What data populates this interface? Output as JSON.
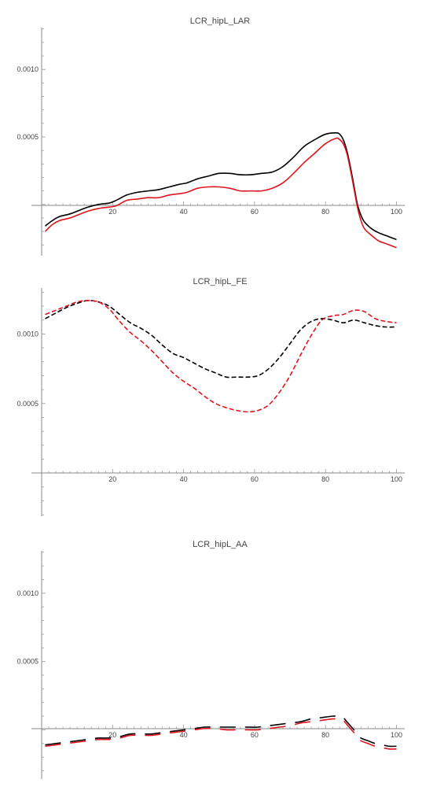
{
  "chart_data": [
    {
      "type": "line",
      "title": "LCR_hipL_LAR",
      "xlabel": "",
      "ylabel": "",
      "xlim": [
        0,
        101
      ],
      "ylim": [
        -0.00038,
        0.00131
      ],
      "x_ticks": [
        20,
        40,
        60,
        80,
        100
      ],
      "y_ticks": [
        0.0005,
        0.001
      ],
      "y_tick_labels": [
        "0.0005",
        "0.0010"
      ],
      "grid": false,
      "line_style": "solid",
      "series": [
        {
          "color": "#000000",
          "x": [
            1,
            3,
            5,
            8,
            10,
            13,
            16,
            19,
            21,
            24,
            27,
            30,
            33,
            36,
            39,
            41,
            44,
            47,
            50,
            53,
            56,
            59,
            62,
            65,
            68,
            71,
            74,
            77,
            80,
            83,
            84,
            85,
            86,
            87,
            88,
            89,
            90,
            91,
            93,
            95,
            97,
            99,
            100
          ],
          "y": [
            -0.00016,
            -0.00012,
            -9e-05,
            -7e-05,
            -5e-05,
            -2e-05,
            0.0,
            1e-05,
            3e-05,
            7e-05,
            9e-05,
            0.0001,
            0.00011,
            0.00013,
            0.00015,
            0.00016,
            0.00019,
            0.00021,
            0.00023,
            0.00023,
            0.00022,
            0.00022,
            0.00023,
            0.00024,
            0.00028,
            0.00035,
            0.00043,
            0.00048,
            0.00052,
            0.00053,
            0.00052,
            0.00048,
            0.0004,
            0.00028,
            0.00014,
            0.0,
            -8e-05,
            -0.00013,
            -0.00018,
            -0.00021,
            -0.00023,
            -0.00025,
            -0.00026
          ]
        },
        {
          "color": "#e0141e",
          "x": [
            1,
            3,
            5,
            8,
            10,
            13,
            16,
            19,
            21,
            24,
            27,
            30,
            33,
            36,
            39,
            41,
            44,
            47,
            50,
            53,
            56,
            59,
            62,
            65,
            68,
            71,
            74,
            77,
            80,
            83,
            84,
            85,
            86,
            87,
            88,
            89,
            90,
            91,
            93,
            95,
            97,
            99,
            100
          ],
          "y": [
            -0.0002,
            -0.00015,
            -0.00012,
            -0.0001,
            -8e-05,
            -5e-05,
            -3e-05,
            -2e-05,
            -1e-05,
            3e-05,
            4e-05,
            5e-05,
            5e-05,
            7e-05,
            8e-05,
            9e-05,
            0.00012,
            0.00013,
            0.00013,
            0.00012,
            0.0001,
            0.0001,
            0.0001,
            0.00012,
            0.00016,
            0.00023,
            0.00031,
            0.00038,
            0.00045,
            0.00049,
            0.00048,
            0.00045,
            0.00038,
            0.00026,
            0.00012,
            -2e-05,
            -0.00012,
            -0.00018,
            -0.00023,
            -0.00027,
            -0.00029,
            -0.00031,
            -0.00032
          ]
        }
      ]
    },
    {
      "type": "line",
      "title": "LCR_hipL_FE",
      "xlabel": "",
      "ylabel": "",
      "xlim": [
        0,
        101
      ],
      "ylim": [
        -0.00031,
        0.00133
      ],
      "x_ticks": [
        20,
        40,
        60,
        80,
        100
      ],
      "y_ticks": [
        0.0005,
        0.001
      ],
      "y_tick_labels": [
        "0.0005",
        "0.0010"
      ],
      "grid": false,
      "line_style": "dashed",
      "series": [
        {
          "color": "#000000",
          "x": [
            1,
            4,
            7,
            10,
            13,
            16,
            19,
            22,
            25,
            28,
            31,
            34,
            37,
            40,
            43,
            46,
            49,
            52,
            55,
            58,
            61,
            64,
            67,
            70,
            73,
            76,
            79,
            82,
            85,
            88,
            91,
            94,
            97,
            100
          ],
          "y": [
            0.00111,
            0.00115,
            0.00119,
            0.00122,
            0.00124,
            0.00123,
            0.0012,
            0.00114,
            0.00108,
            0.00104,
            0.00099,
            0.00092,
            0.00086,
            0.00083,
            0.00079,
            0.00075,
            0.00072,
            0.00069,
            0.00069,
            0.00069,
            0.0007,
            0.00075,
            0.00083,
            0.00093,
            0.00103,
            0.00109,
            0.00111,
            0.0011,
            0.00108,
            0.0011,
            0.00108,
            0.00106,
            0.00105,
            0.00105
          ]
        },
        {
          "color": "#e0141e",
          "x": [
            1,
            4,
            7,
            10,
            13,
            16,
            19,
            22,
            25,
            28,
            31,
            34,
            37,
            40,
            43,
            46,
            49,
            52,
            55,
            58,
            61,
            64,
            67,
            70,
            73,
            76,
            79,
            82,
            85,
            88,
            91,
            94,
            97,
            100
          ],
          "y": [
            0.00114,
            0.00117,
            0.0012,
            0.00123,
            0.00124,
            0.00123,
            0.00118,
            0.00109,
            0.00101,
            0.00095,
            0.00088,
            0.0008,
            0.00072,
            0.00066,
            0.00061,
            0.00055,
            0.0005,
            0.00047,
            0.00045,
            0.00044,
            0.00045,
            0.00049,
            0.00058,
            0.0007,
            0.00085,
            0.00099,
            0.0011,
            0.00113,
            0.00114,
            0.00117,
            0.00116,
            0.00111,
            0.00109,
            0.00108
          ]
        }
      ]
    },
    {
      "type": "line",
      "title": "LCR_hipL_AA",
      "xlabel": "",
      "ylabel": "",
      "xlim": [
        0,
        101
      ],
      "ylim": [
        -0.00036,
        0.00131
      ],
      "x_ticks": [
        20,
        40,
        60,
        80,
        100
      ],
      "y_ticks": [
        0.0005,
        0.001
      ],
      "y_tick_labels": [
        "0.0005",
        "0.0010"
      ],
      "grid": false,
      "line_style": "long-dash",
      "series": [
        {
          "color": "#000000",
          "x": [
            1,
            4,
            7,
            10,
            13,
            16,
            19,
            22,
            25,
            28,
            31,
            34,
            37,
            40,
            43,
            46,
            49,
            52,
            55,
            58,
            61,
            64,
            67,
            70,
            73,
            76,
            79,
            82,
            84,
            85,
            86,
            87,
            88,
            89,
            90,
            92,
            94,
            96,
            98,
            100
          ],
          "y": [
            -0.00011,
            -0.0001,
            -9e-05,
            -8e-05,
            -7e-05,
            -6e-05,
            -6e-05,
            -5e-05,
            -3e-05,
            -3e-05,
            -3e-05,
            -2e-05,
            -1e-05,
            0.0,
            1e-05,
            2e-05,
            2e-05,
            2e-05,
            2e-05,
            2e-05,
            2e-05,
            3e-05,
            4e-05,
            5e-05,
            6e-05,
            8e-05,
            9e-05,
            0.0001,
            0.0001,
            9e-05,
            6e-05,
            3e-05,
            0.0,
            -3e-05,
            -6e-05,
            -8e-05,
            -0.0001,
            -0.00011,
            -0.00012,
            -0.00012
          ]
        },
        {
          "color": "#e0141e",
          "x": [
            1,
            4,
            7,
            10,
            13,
            16,
            19,
            22,
            25,
            28,
            31,
            34,
            37,
            40,
            43,
            46,
            49,
            52,
            55,
            58,
            61,
            64,
            67,
            70,
            73,
            76,
            79,
            82,
            84,
            85,
            86,
            87,
            88,
            89,
            90,
            92,
            94,
            96,
            98,
            100
          ],
          "y": [
            -0.00012,
            -0.00011,
            -0.0001,
            -9e-05,
            -8e-05,
            -7e-05,
            -7e-05,
            -6e-05,
            -4e-05,
            -4e-05,
            -4e-05,
            -3e-05,
            -2e-05,
            -1e-05,
            0.0,
            1e-05,
            1e-05,
            0.0,
            0.0,
            0.0,
            0.0,
            1e-05,
            2e-05,
            3e-05,
            5e-05,
            6e-05,
            7e-05,
            8e-05,
            8e-05,
            7e-05,
            4e-05,
            1e-05,
            -2e-05,
            -5e-05,
            -8e-05,
            -0.0001,
            -0.00012,
            -0.00013,
            -0.00014,
            -0.00014
          ]
        }
      ]
    }
  ]
}
